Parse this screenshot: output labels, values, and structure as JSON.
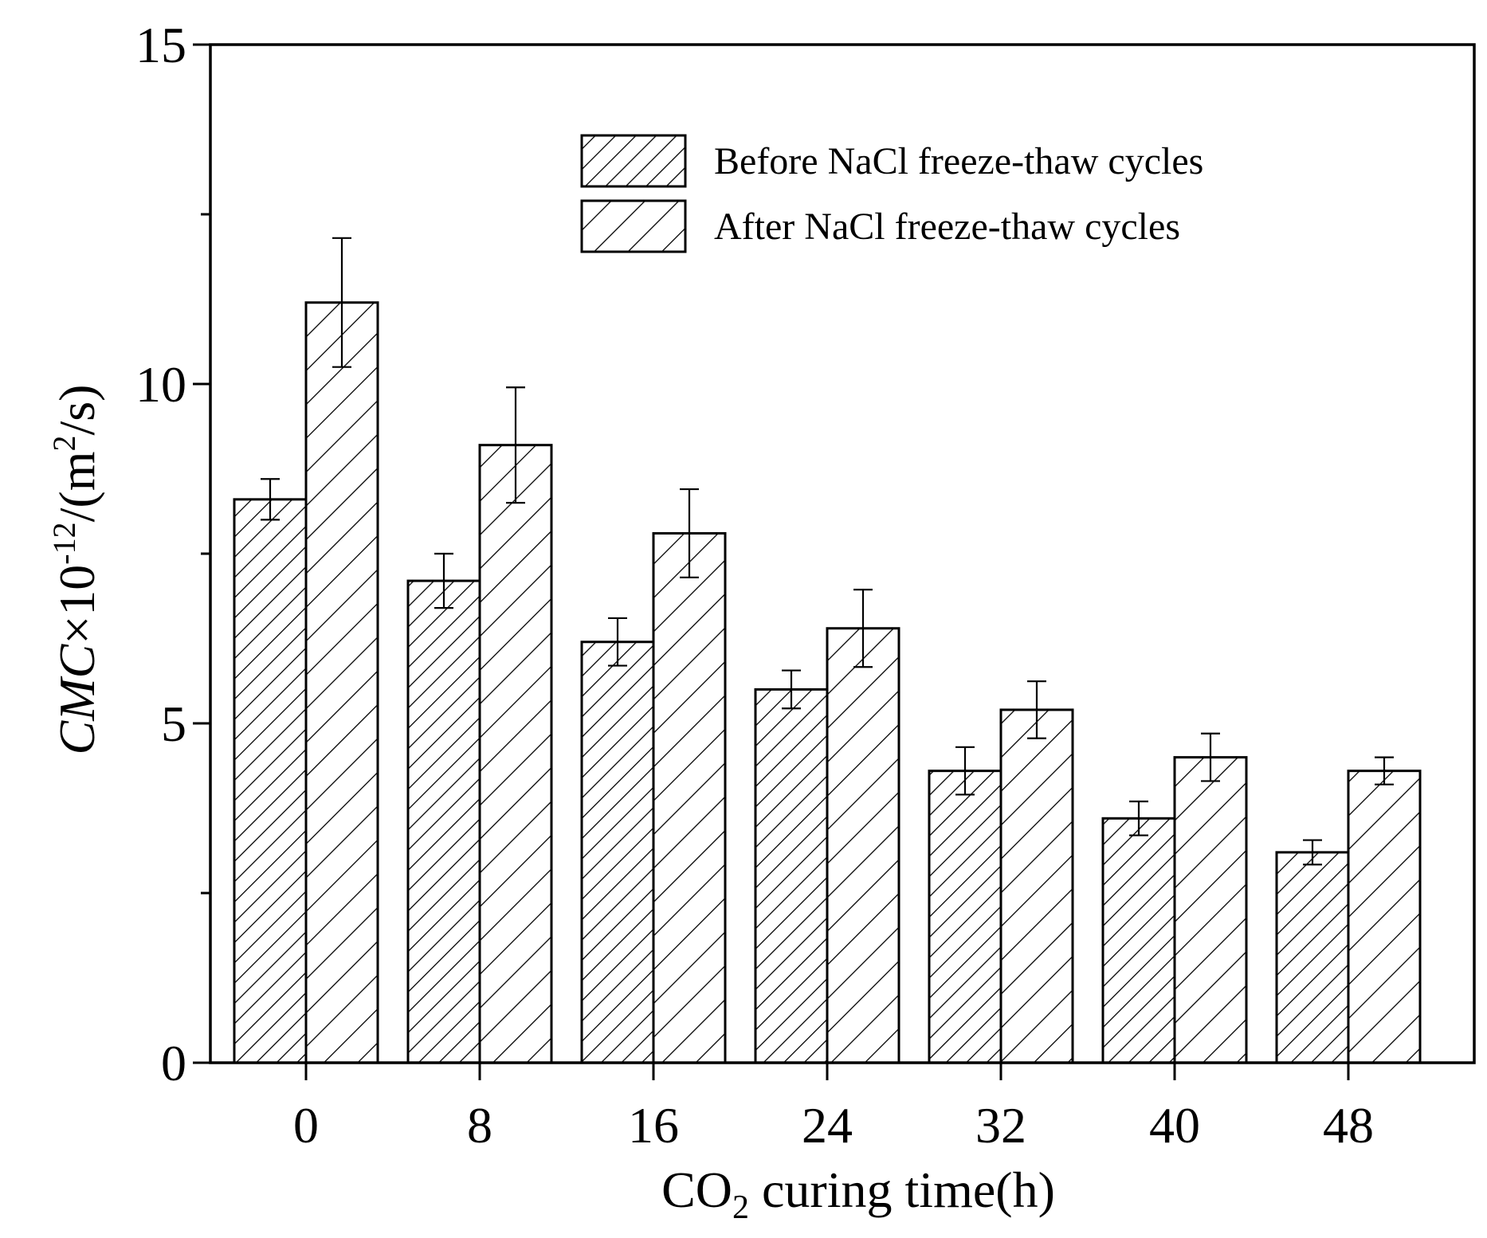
{
  "chart_data": {
    "type": "bar",
    "categories": [
      "0",
      "8",
      "16",
      "24",
      "32",
      "40",
      "48"
    ],
    "series": [
      {
        "name": "Before NaCl freeze-thaw cycles",
        "values": [
          8.3,
          7.1,
          6.2,
          5.5,
          4.3,
          3.6,
          3.1
        ],
        "errors": [
          0.3,
          0.4,
          0.35,
          0.28,
          0.35,
          0.25,
          0.18
        ],
        "pattern": "dense-hatch"
      },
      {
        "name": "After NaCl freeze-thaw cycles",
        "values": [
          11.2,
          9.1,
          7.8,
          6.4,
          5.2,
          4.5,
          4.3
        ],
        "errors": [
          0.95,
          0.85,
          0.65,
          0.57,
          0.42,
          0.35,
          0.2
        ],
        "pattern": "sparse-hatch"
      }
    ],
    "xlabel": {
      "prefix": "CO",
      "sub": "2",
      "suffix": " curing time(h)"
    },
    "ylabel": {
      "italic": "CMC",
      "times": "×10",
      "sup1": "-12",
      "mid": "/(m",
      "sup2": "2",
      "end": "/s)"
    },
    "yticks": [
      "0",
      "5",
      "10",
      "15"
    ],
    "ylim": [
      0,
      15
    ],
    "legend_position": "top-right",
    "grid": false,
    "colors": {
      "stroke": "#000000",
      "fill": "#ffffff"
    }
  }
}
